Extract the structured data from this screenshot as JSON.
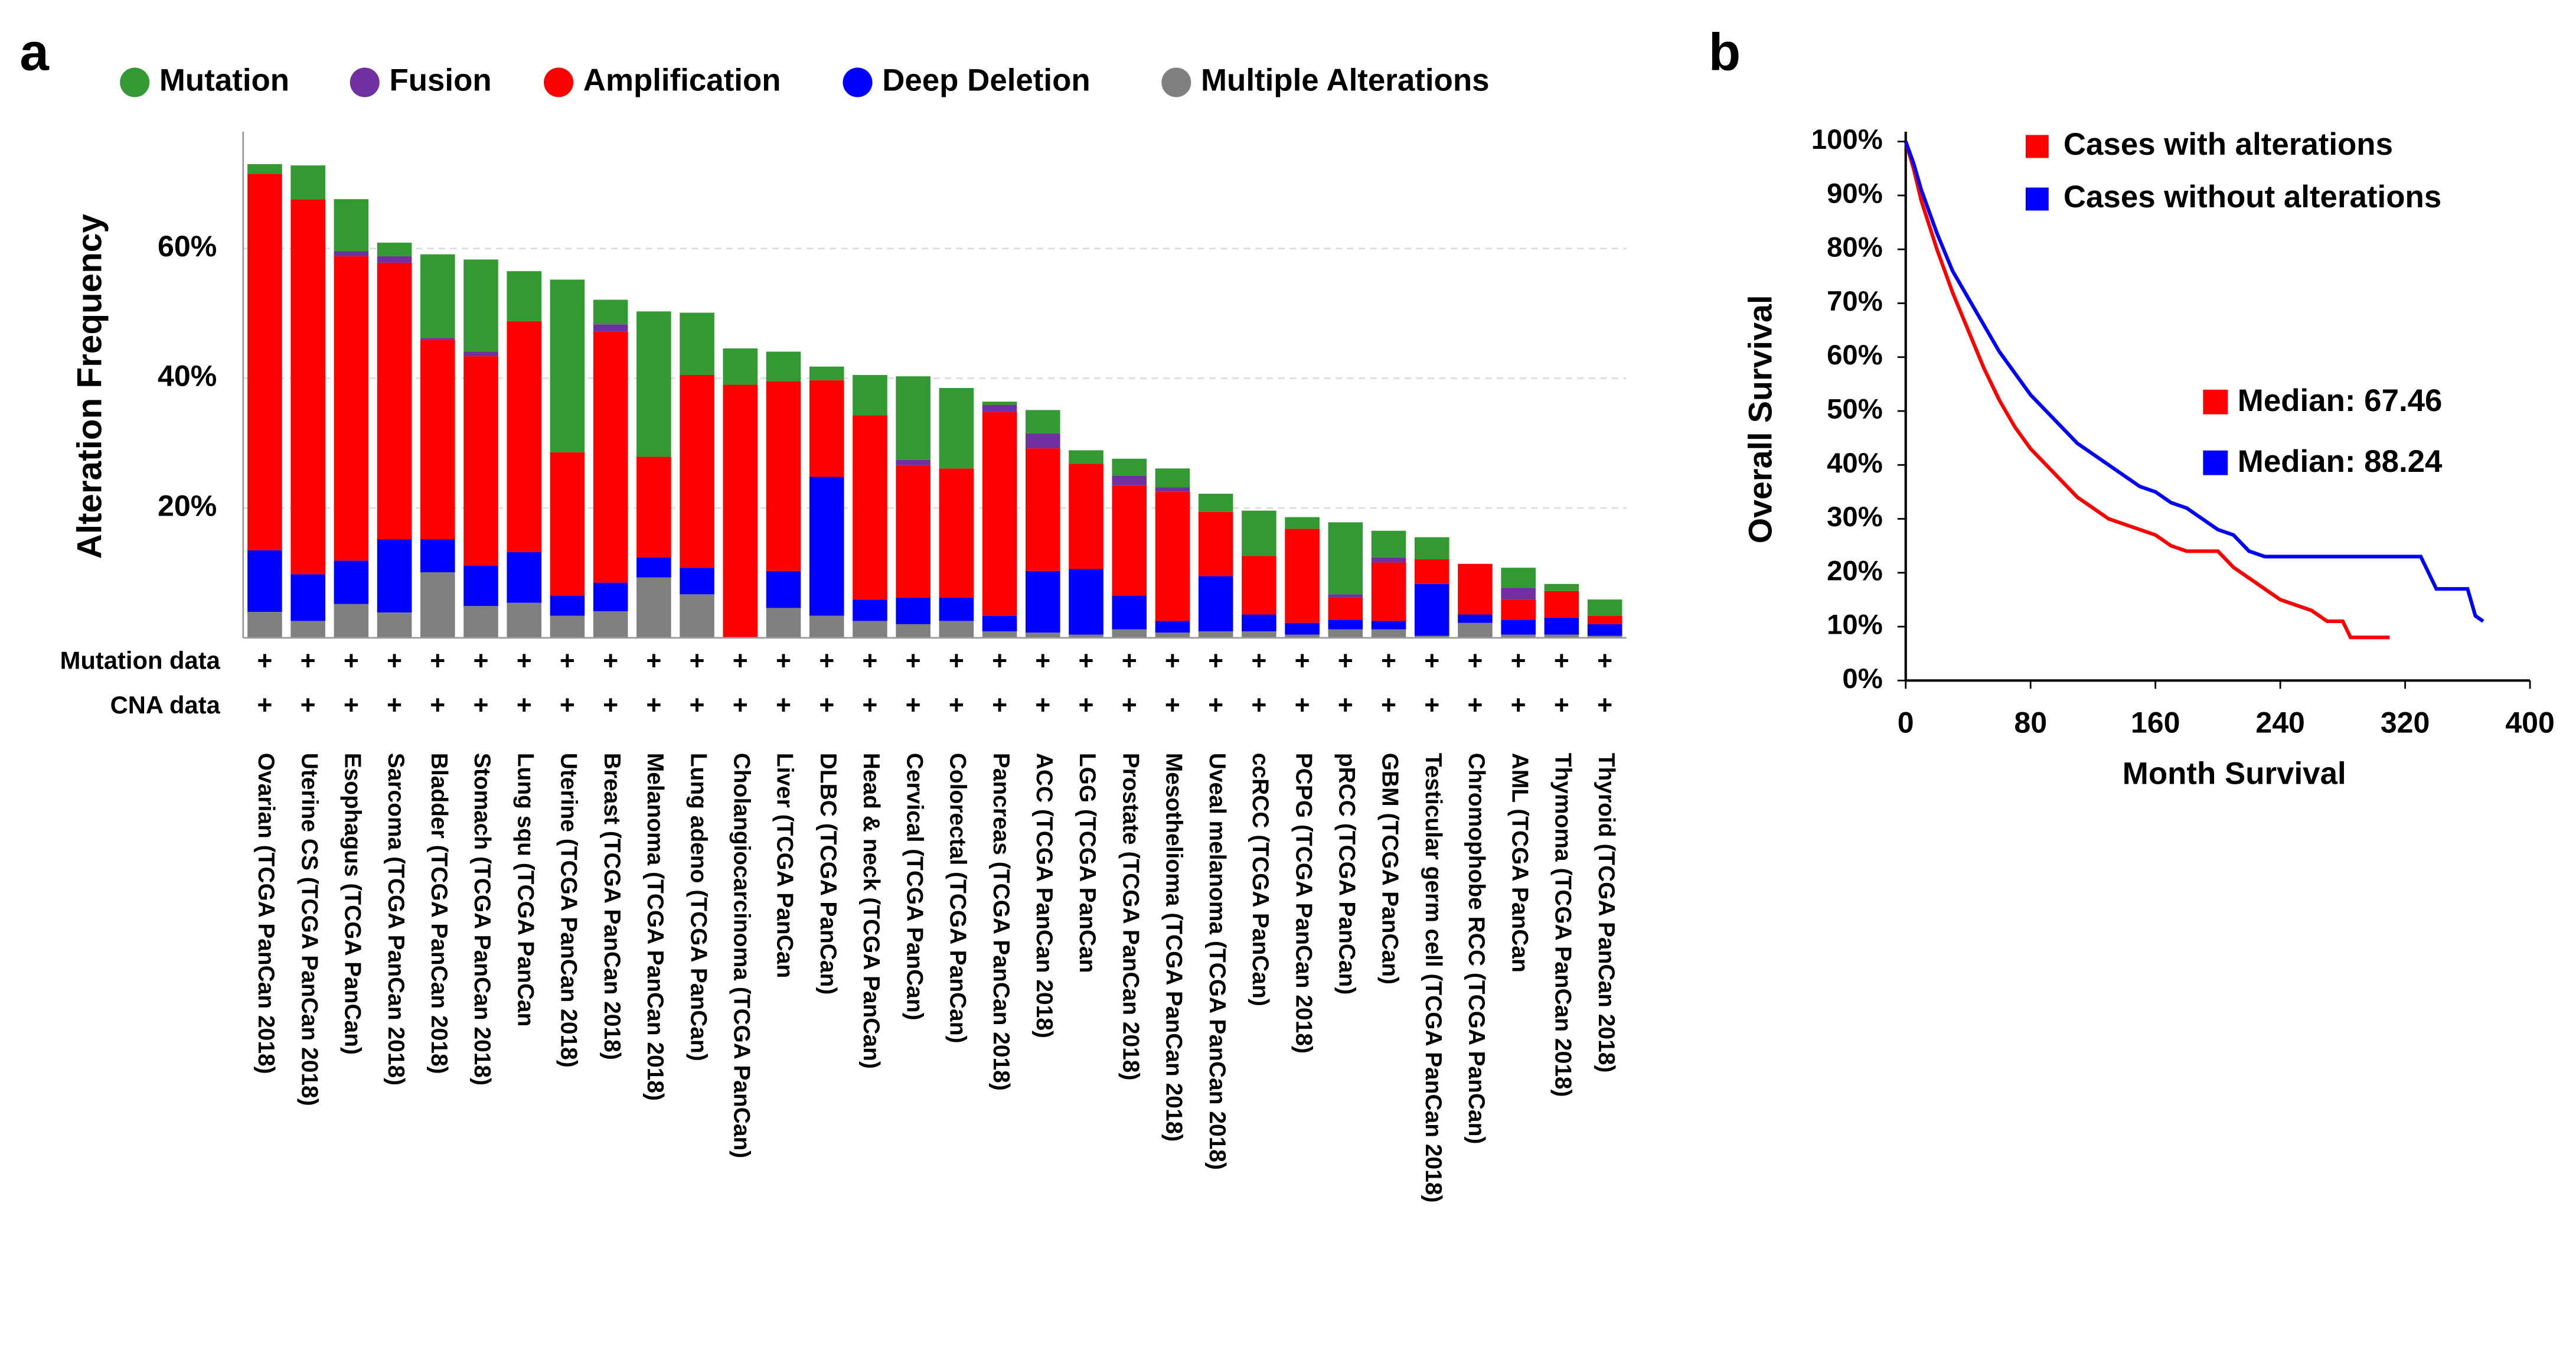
{
  "chart_data": [
    {
      "type": "stacked-bar",
      "panel_label": "a",
      "ylabel": "Alteration Frequency",
      "categories": [
        "Ovarian (TCGA PanCan 2018)",
        "Uterine CS (TCGA PanCan 2018)",
        "Esophagus (TCGA PanCan)",
        "Sarcoma (TCGA PanCan 2018)",
        "Bladder (TCGA PanCan 2018)",
        "Stomach (TCGA PanCan 2018)",
        "Lung squ (TCGA PanCan",
        "Uterine (TCGA PanCan 2018)",
        "Breast (TCGA PanCan 2018)",
        "Melanoma (TCGA PanCan 2018)",
        "Lung adeno (TCGA PanCan)",
        "Cholangiocarcinoma (TCGA PanCan)",
        "Liver (TCGA PanCan",
        "DLBC (TCGA PanCan)",
        "Head & neck (TCGA PanCan)",
        "Cervical (TCGA PanCan)",
        "Colorectal (TCGA PanCan)",
        "Pancreas (TCGA PanCan 2018)",
        "ACC (TCGA PanCan 2018)",
        "LGG (TCGA PanCan",
        "Prostate (TCGA PanCan 2018)",
        "Mesothelioma (TCGA PanCan 2018)",
        "Uveal melanoma (TCGA PanCan 2018)",
        "ccRCC (TCGA PanCan)",
        "PCPG (TCGA PanCan 2018)",
        "pRCC (TCGA PanCan)",
        "GBM (TCGA PanCan)",
        "Testicular germ cell (TCGA PanCan 2018)",
        "Chromophobe RCC (TCGA PanCan)",
        "AML (TCGA PanCan",
        "Thymoma (TCGA PanCan 2018)",
        "Thyroid (TCGA PanCan 2018)"
      ],
      "series": [
        {
          "name": "Multiple Alterations",
          "color": "#808080",
          "values": [
            4,
            2.6,
            5.2,
            3.9,
            10.1,
            4.9,
            5.4,
            3.4,
            4.1,
            9.3,
            6.7,
            0,
            4.6,
            3.4,
            2.6,
            2.1,
            2.6,
            1,
            0.8,
            0.5,
            1.3,
            0.8,
            1,
            1,
            0.5,
            1.3,
            1.3,
            0.3,
            2.3,
            0.5,
            0.5,
            0.3
          ]
        },
        {
          "name": "Deep Deletion",
          "color": "#0000ff",
          "values": [
            9.5,
            7.2,
            6.7,
            11.3,
            5.1,
            6.2,
            7.8,
            3.1,
            4.4,
            3.1,
            4.1,
            0,
            5.7,
            21.4,
            3.3,
            4.1,
            3.6,
            2.4,
            9.5,
            10.1,
            5.2,
            1.8,
            8.5,
            2.6,
            1.8,
            1.5,
            1.3,
            8,
            1.3,
            2.3,
            2.6,
            1.8
          ]
        },
        {
          "name": "Amplification",
          "color": "#ff0000",
          "values": [
            58,
            57.8,
            46.9,
            42.6,
            30.7,
            32.3,
            35.6,
            22.1,
            38.7,
            15.5,
            29.7,
            39,
            29.2,
            14.9,
            28.4,
            20.4,
            19.9,
            31.4,
            18.9,
            16.2,
            17,
            19.9,
            9.9,
            9,
            14.5,
            3.4,
            9,
            3.8,
            7.8,
            3.1,
            4.1,
            1.3
          ]
        },
        {
          "name": "Fusion",
          "color": "#7030a0",
          "values": [
            0,
            0,
            0.8,
            1,
            0.3,
            0.7,
            0,
            0,
            1.1,
            0,
            0,
            0,
            0,
            0,
            0,
            0.8,
            0,
            1.1,
            2.3,
            0,
            1.5,
            0.7,
            0,
            0,
            0,
            0.5,
            0.8,
            0,
            0,
            1.8,
            0,
            0
          ]
        },
        {
          "name": "Mutation",
          "color": "#339933",
          "values": [
            1.5,
            5.2,
            8,
            2.1,
            12.9,
            14.2,
            7.7,
            26.6,
            3.8,
            22.4,
            9.6,
            5.6,
            4.6,
            2.1,
            6.2,
            12.9,
            12.4,
            0.5,
            3.6,
            2.1,
            2.6,
            2.9,
            2.8,
            7,
            1.8,
            11.1,
            4.1,
            3.4,
            0,
            3.1,
            1.1,
            2.5
          ]
        }
      ],
      "legend_order": [
        "Mutation",
        "Fusion",
        "Amplification",
        "Deep Deletion",
        "Multiple Alterations"
      ],
      "track_rows": [
        {
          "label": "Mutation data",
          "marks": [
            "+",
            "+",
            "+",
            "+",
            "+",
            "+",
            "+",
            "+",
            "+",
            "+",
            "+",
            "+",
            "+",
            "+",
            "+",
            "+",
            "+",
            "+",
            "+",
            "+",
            "+",
            "+",
            "+",
            "+",
            "+",
            "+",
            "+",
            "+",
            "+",
            "+",
            "+",
            "+"
          ]
        },
        {
          "label": "CNA data",
          "marks": [
            "+",
            "+",
            "+",
            "+",
            "+",
            "+",
            "+",
            "+",
            "+",
            "+",
            "+",
            "+",
            "+",
            "+",
            "+",
            "+",
            "+",
            "+",
            "+",
            "+",
            "+",
            "+",
            "+",
            "+",
            "+",
            "+",
            "+",
            "+",
            "+",
            "+",
            "+",
            "+"
          ]
        }
      ],
      "ylim": [
        0,
        78
      ],
      "yticks": [
        {
          "value": 20,
          "label": "20%"
        },
        {
          "value": 40,
          "label": "40%"
        },
        {
          "value": 60,
          "label": "60%"
        }
      ],
      "grid": true
    },
    {
      "type": "line",
      "panel_label": "b",
      "xlabel": "Month Survival",
      "ylabel": "Overall Survival",
      "series": [
        {
          "name": "Cases with alterations",
          "color": "#ff0000",
          "x": [
            0,
            5,
            10,
            20,
            30,
            40,
            50,
            60,
            70,
            80,
            90,
            100,
            110,
            120,
            130,
            140,
            150,
            160,
            170,
            180,
            200,
            210,
            220,
            230,
            240,
            250,
            260,
            270,
            280,
            285,
            310
          ],
          "values": [
            100,
            95,
            89,
            80,
            72,
            65,
            58,
            52,
            47,
            43,
            40,
            37,
            34,
            32,
            30,
            29,
            28,
            27,
            25,
            24,
            24,
            21,
            19,
            17,
            15,
            14,
            13,
            11,
            11,
            8,
            8
          ]
        },
        {
          "name": "Cases without alterations",
          "color": "#0000ff",
          "x": [
            0,
            5,
            10,
            20,
            30,
            40,
            50,
            60,
            70,
            80,
            90,
            100,
            110,
            120,
            130,
            140,
            150,
            160,
            170,
            180,
            190,
            200,
            210,
            220,
            230,
            330,
            340,
            360,
            365,
            370
          ],
          "values": [
            100,
            96,
            91,
            83,
            76,
            71,
            66,
            61,
            57,
            53,
            50,
            47,
            44,
            42,
            40,
            38,
            36,
            35,
            33,
            32,
            30,
            28,
            27,
            24,
            23,
            23,
            17,
            17,
            12,
            11
          ]
        }
      ],
      "annotations": [
        {
          "text": "Median: 67.46",
          "color": "#ff0000"
        },
        {
          "text": "Median: 88.24",
          "color": "#0000ff"
        }
      ],
      "xlim": [
        0,
        400
      ],
      "xticks": [
        0,
        80,
        160,
        240,
        320,
        400
      ],
      "ylim": [
        0,
        100
      ],
      "yticks": [
        {
          "value": 0,
          "label": "0%"
        },
        {
          "value": 10,
          "label": "10%"
        },
        {
          "value": 20,
          "label": "20%"
        },
        {
          "value": 30,
          "label": "30%"
        },
        {
          "value": 40,
          "label": "40%"
        },
        {
          "value": 50,
          "label": "50%"
        },
        {
          "value": 60,
          "label": "60%"
        },
        {
          "value": 70,
          "label": "70%"
        },
        {
          "value": 80,
          "label": "80%"
        },
        {
          "value": 90,
          "label": "90%"
        },
        {
          "value": 100,
          "label": "100%"
        }
      ]
    }
  ]
}
